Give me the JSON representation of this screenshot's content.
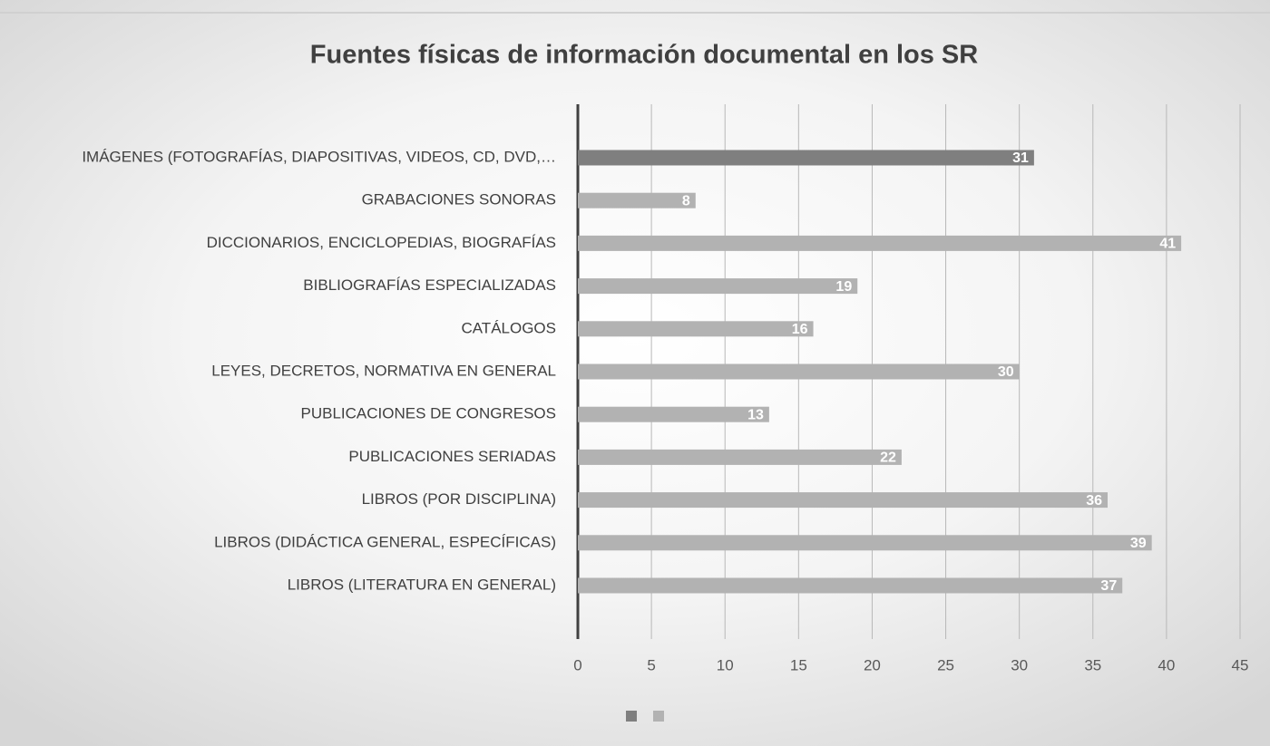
{
  "chart_data": {
    "type": "bar",
    "orientation": "horizontal",
    "title": "Fuentes físicas de información documental en los SR",
    "categories": [
      "IMÁGENES (FOTOGRAFÍAS, DIAPOSITIVAS, VIDEOS, CD, DVD,…",
      "GRABACIONES SONORAS",
      "DICCIONARIOS, ENCICLOPEDIAS, BIOGRAFÍAS",
      "BIBLIOGRAFÍAS ESPECIALIZADAS",
      "CATÁLOGOS",
      "LEYES, DECRETOS, NORMATIVA EN GENERAL",
      "PUBLICACIONES DE CONGRESOS",
      "PUBLICACIONES SERIADAS",
      "LIBROS (POR DISCIPLINA)",
      "LIBROS (DIDÁCTICA GENERAL, ESPECÍFICAS)",
      "LIBROS (LITERATURA EN GENERAL)"
    ],
    "series": [
      {
        "color": "#7f7f7f",
        "values": [
          31,
          null,
          null,
          null,
          null,
          null,
          null,
          null,
          null,
          null,
          null
        ]
      },
      {
        "color": "#b2b2b2",
        "values": [
          null,
          8,
          41,
          19,
          16,
          30,
          13,
          22,
          36,
          39,
          37
        ]
      }
    ],
    "xlim": [
      0,
      45
    ],
    "xticks": [
      0,
      5,
      10,
      15,
      20,
      25,
      30,
      35,
      40,
      45
    ],
    "grid": true
  }
}
